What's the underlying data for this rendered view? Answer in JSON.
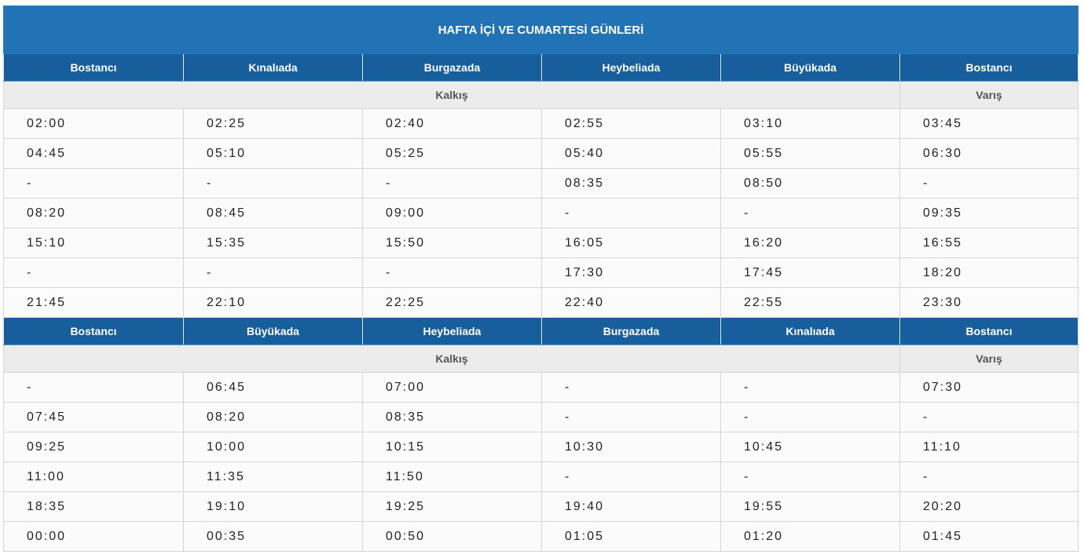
{
  "title": "HAFTA İÇİ VE CUMARTESİ GÜNLERİ",
  "colors": {
    "title_bg": "#2173b6",
    "header_bg": "#175f9c",
    "subheader_bg": "#ececec",
    "cell_bg": "#fbfbfb"
  },
  "sections": [
    {
      "stops": [
        "Bostancı",
        "Kınalıada",
        "Burgazada",
        "Heybeliada",
        "Büyükada",
        "Bostancı"
      ],
      "departure_label": "Kalkış",
      "arrival_label": "Varış",
      "rows": [
        [
          "02:00",
          "02:25",
          "02:40",
          "02:55",
          "03:10",
          "03:45"
        ],
        [
          "04:45",
          "05:10",
          "05:25",
          "05:40",
          "05:55",
          "06:30"
        ],
        [
          "-",
          "-",
          "-",
          "08:35",
          "08:50",
          "-"
        ],
        [
          "08:20",
          "08:45",
          "09:00",
          "-",
          "-",
          "09:35"
        ],
        [
          "15:10",
          "15:35",
          "15:50",
          "16:05",
          "16:20",
          "16:55"
        ],
        [
          "-",
          "-",
          "-",
          "17:30",
          "17:45",
          "18:20"
        ],
        [
          "21:45",
          "22:10",
          "22:25",
          "22:40",
          "22:55",
          "23:30"
        ]
      ]
    },
    {
      "stops": [
        "Bostancı",
        "Büyükada",
        "Heybeliada",
        "Burgazada",
        "Kınalıada",
        "Bostancı"
      ],
      "departure_label": "Kalkış",
      "arrival_label": "Varış",
      "rows": [
        [
          "-",
          "06:45",
          "07:00",
          "-",
          "-",
          "07:30"
        ],
        [
          "07:45",
          "08:20",
          "08:35",
          "-",
          "-",
          "-"
        ],
        [
          "09:25",
          "10:00",
          "10:15",
          "10:30",
          "10:45",
          "11:10"
        ],
        [
          "11:00",
          "11:35",
          "11:50",
          "-",
          "-",
          "-"
        ],
        [
          "18:35",
          "19:10",
          "19:25",
          "19:40",
          "19:55",
          "20:20"
        ],
        [
          "00:00",
          "00:35",
          "00:50",
          "01:05",
          "01:20",
          "01:45"
        ]
      ]
    }
  ]
}
